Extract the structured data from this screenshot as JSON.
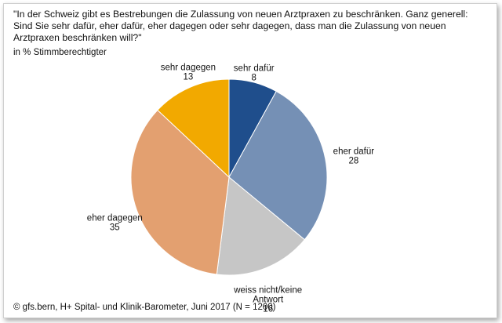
{
  "question_lines": [
    "\"In der Schweiz gibt es Bestrebungen die Zulassung von neuen Arztpraxen zu beschränken. Ganz generell:",
    "Sind Sie sehr dafür, eher dafür, eher dagegen oder sehr dagegen, dass man die Zulassung von neuen",
    "Arztpraxen beschränken will?\""
  ],
  "subtitle": "in % Stimmberechtigter",
  "source": "© gfs.bern, H+ Spital- und Klinik-Barometer, Juni 2017 (N = 1200)",
  "chart_data": {
    "type": "pie",
    "title": "\"In der Schweiz gibt es Bestrebungen die Zulassung von neuen Arztpraxen zu beschränken. Ganz generell: Sind Sie sehr dafür, eher dafür, eher dagegen oder sehr dagegen, dass man die Zulassung von neuen Arztpraxen beschränken will?\"",
    "subtitle": "in % Stimmberechtigter",
    "start": "top",
    "direction": "clockwise",
    "slices": [
      {
        "label": "sehr dafür",
        "value": 8,
        "color": "#1f4e8c"
      },
      {
        "label": "eher dafür",
        "value": 28,
        "color": "#7590b5"
      },
      {
        "label": "weiss nicht/keine Antwort",
        "label_lines": [
          "weiss nicht/keine",
          "Antwort"
        ],
        "value": 16,
        "color": "#c6c6c6"
      },
      {
        "label": "eher dagegen",
        "value": 35,
        "color": "#e3a070"
      },
      {
        "label": "sehr dagegen",
        "value": 13,
        "color": "#f2a900"
      }
    ]
  }
}
